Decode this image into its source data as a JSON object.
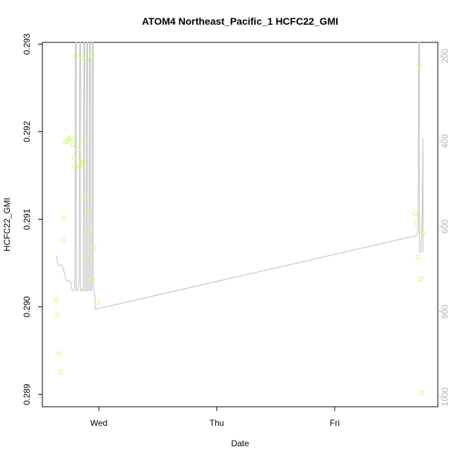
{
  "chart_data": {
    "type": "scatter",
    "title": "ATOM4 Northeast_Pacific_1 HCFC22_GMI",
    "xlabel": "Date",
    "ylabel": "HCFC22_GMI",
    "x_ticks": [
      "Wed",
      "Thu",
      "Fri"
    ],
    "y_ticks": [
      "0.289",
      "0.290",
      "0.291",
      "0.292",
      "0.293"
    ],
    "y2_ticks": [
      "200",
      "400",
      "600",
      "800",
      "1000"
    ],
    "ylim": [
      0.28886,
      0.29302
    ],
    "y2lim": [
      1023,
      168
    ],
    "colors": {
      "points": "#ccff66",
      "pressure_line": "#bebebe",
      "right_axis": "#b3b3b3"
    },
    "series": [
      {
        "kind": "points",
        "x": [
          -0.35,
          -0.34,
          -0.335,
          -0.33,
          -0.32,
          -0.31,
          -0.3,
          -0.295,
          -0.29,
          -0.285,
          -0.28,
          -0.275,
          -0.27,
          -0.265,
          -0.26,
          -0.255,
          -0.25,
          -0.245,
          -0.24,
          -0.235,
          -0.23,
          -0.225,
          -0.22,
          -0.215,
          -0.21,
          -0.205,
          -0.2,
          -0.195,
          -0.19,
          -0.185,
          -0.18,
          -0.175,
          -0.17,
          -0.165,
          -0.16,
          -0.155,
          -0.15,
          -0.145,
          -0.14,
          -0.135,
          -0.13,
          -0.125,
          -0.12,
          -0.115,
          -0.11,
          -0.105,
          -0.1,
          -0.095,
          -0.09,
          -0.085,
          -0.08,
          -0.075,
          -0.07,
          -0.065,
          -0.06,
          -0.055,
          -0.05,
          -0.045,
          -0.04,
          -0.035,
          -0.03,
          -0.025,
          -0.02,
          -0.015,
          -0.01,
          -0.005,
          0.0
        ],
        "y": [
          0.29003,
          0.28985,
          0.28938,
          0.28917,
          0.29074,
          0.291,
          0.2919,
          0.29194,
          0.29196,
          0.29188,
          0.29173,
          0.2916,
          0.29158,
          0.29293,
          0.29182,
          0.29162,
          0.29167,
          0.29292,
          0.29165,
          0.2919,
          0.29124,
          0.2929,
          0.29086,
          0.29107,
          0.29055,
          0.29295,
          0.29027,
          0.29065,
          0.29001,
          0.29001,
          0.29001,
          0.29001,
          0.29001,
          0.29001,
          0.29001,
          0.29001,
          0.29001,
          0.29001,
          0.29001,
          0.29001,
          0.29001,
          0.29001,
          0.29001,
          0.29001,
          0.29001,
          0.29001,
          0.29001,
          0.29001,
          0.29001,
          0.29001,
          0.29001,
          0.29001,
          0.29001,
          0.29001,
          0.29001,
          0.29001,
          0.29001,
          0.29001,
          0.29001,
          0.29001,
          0.29001,
          0.29001,
          0.29001,
          0.29001,
          0.29001,
          0.29001,
          0.29001
        ]
      }
    ]
  }
}
